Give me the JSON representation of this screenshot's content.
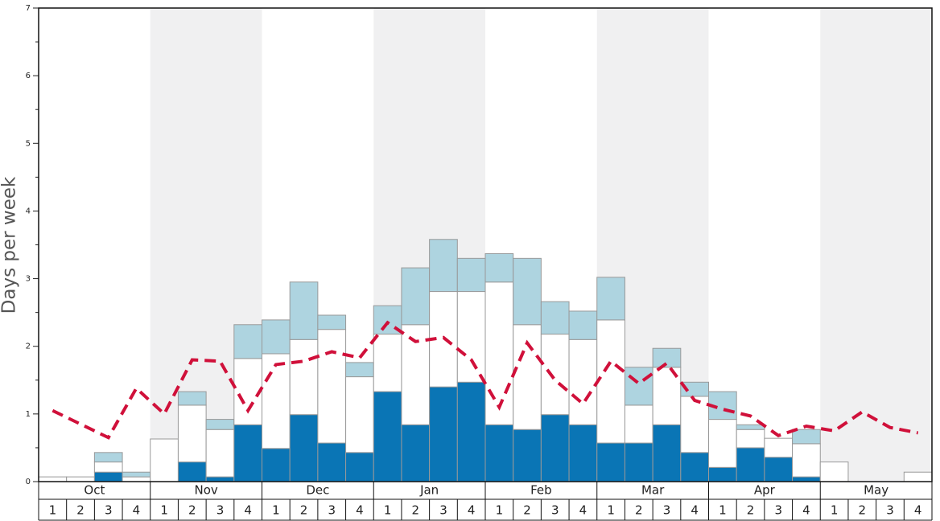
{
  "chart_data": {
    "type": "bar",
    "stacked": true,
    "y_label": "Days per week",
    "months": [
      "Oct",
      "Nov",
      "Dec",
      "Jan",
      "Feb",
      "Mar",
      "Apr",
      "May"
    ],
    "categories": [
      "1",
      "2",
      "3",
      "4",
      "1",
      "2",
      "3",
      "4",
      "1",
      "2",
      "3",
      "4",
      "1",
      "2",
      "3",
      "4",
      "1",
      "2",
      "3",
      "4",
      "1",
      "2",
      "3",
      "4",
      "1",
      "2",
      "3",
      "4",
      "1",
      "2",
      "3",
      "4"
    ],
    "series": [
      {
        "color": "#0a75b5",
        "values": [
          0,
          0,
          0.14,
          0,
          0,
          0.29,
          0.07,
          0.84,
          0.49,
          0.99,
          0.57,
          0.43,
          1.33,
          0.84,
          1.4,
          1.47,
          0.84,
          0.77,
          0.99,
          0.84,
          0.57,
          0.57,
          0.84,
          0.43,
          0.21,
          0.5,
          0.36,
          0.07,
          0,
          0,
          0,
          0
        ]
      },
      {
        "color": "#ffffff",
        "values": [
          0.07,
          0.07,
          0.15,
          0.07,
          0.63,
          0.84,
          0.7,
          0.98,
          1.4,
          1.11,
          1.68,
          1.12,
          0.85,
          1.48,
          1.41,
          1.34,
          2.11,
          1.55,
          1.19,
          1.26,
          1.82,
          0.56,
          0.85,
          0.83,
          0.71,
          0.27,
          0.28,
          0.49,
          0.29,
          0,
          0,
          0.14
        ]
      },
      {
        "color": "#aed4e0",
        "values": [
          0,
          0,
          0.14,
          0.07,
          0,
          0.2,
          0.15,
          0.5,
          0.5,
          0.85,
          0.21,
          0.21,
          0.42,
          0.84,
          0.77,
          0.49,
          0.42,
          0.98,
          0.48,
          0.42,
          0.63,
          0.56,
          0.28,
          0.21,
          0.41,
          0.07,
          0,
          0.21,
          0,
          0,
          0,
          0
        ]
      }
    ],
    "line": {
      "color": "#d0103a",
      "values": [
        1.05,
        0.85,
        0.65,
        1.38,
        1.0,
        1.8,
        1.78,
        1.05,
        1.73,
        1.78,
        1.92,
        1.83,
        2.35,
        2.07,
        2.13,
        1.8,
        1.1,
        2.05,
        1.5,
        1.15,
        1.78,
        1.45,
        1.75,
        1.2,
        1.07,
        0.97,
        0.68,
        0.82,
        0.75,
        1.03,
        0.8,
        0.72
      ]
    },
    "ylim": [
      0,
      7
    ],
    "yticks": [
      0,
      1,
      2,
      3,
      4,
      5,
      6,
      7
    ],
    "yminorticks": [
      0.5,
      1.5,
      2.5,
      3.5,
      4.5,
      5.5,
      6.5
    ],
    "shade_color": "#f0f0f1"
  }
}
